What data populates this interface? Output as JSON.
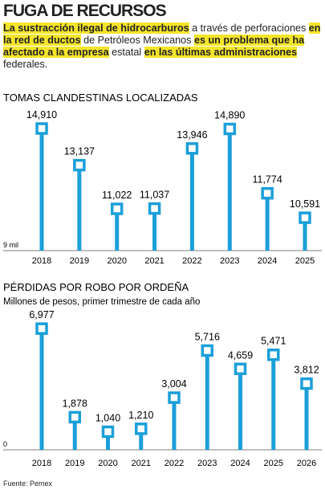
{
  "header": {
    "title": "FUGA DE RECURSOS",
    "intro": [
      {
        "text": "La sustracción ilegal de hidrocarburos",
        "highlight": true
      },
      {
        "text": " a través de perforaciones ",
        "highlight": false
      },
      {
        "text": "en la red de ductos",
        "highlight": true
      },
      {
        "text": " de Petróleos Mexicanos ",
        "highlight": false
      },
      {
        "text": "es un problema que ha afectado a la empresa",
        "highlight": true
      },
      {
        "text": " estatal ",
        "highlight": false
      },
      {
        "text": "en las últimas administraciones",
        "highlight": true
      },
      {
        "text": " federales.",
        "highlight": false
      }
    ]
  },
  "chart_data": [
    {
      "type": "lollipop",
      "title": "TOMAS CLANDESTINAS LOCALIZADAS",
      "categories": [
        "2018",
        "2019",
        "2020",
        "2021",
        "2022",
        "2023",
        "2024",
        "2025"
      ],
      "values": [
        14910,
        13137,
        11022,
        11037,
        13946,
        14890,
        11774,
        10591
      ],
      "value_labels": [
        "14,910",
        "13,137",
        "11,022",
        "11,037",
        "13,946",
        "14,890",
        "11,774",
        "10,591"
      ],
      "color": "#1b9fd9",
      "ylim": [
        9000,
        15300
      ],
      "yticks": [
        {
          "value": 9000,
          "label": "9 mil"
        }
      ]
    },
    {
      "type": "lollipop",
      "title": "PÉRDIDAS POR ROBO POR ORDEÑA",
      "subtitle": "Millones de pesos, primer trimestre de cada año",
      "categories": [
        "2018",
        "2019",
        "2020",
        "2021",
        "2022",
        "2023",
        "2024",
        "2025",
        "2026"
      ],
      "values": [
        6977,
        1878,
        1040,
        1210,
        3004,
        5716,
        4659,
        5471,
        3812
      ],
      "value_labels": [
        "6,977",
        "1,878",
        "1,040",
        "1,210",
        "3,004",
        "5,716",
        "4,659",
        "5,471",
        "3,812"
      ],
      "color": "#1b9fd9",
      "ylim": [
        0,
        7400
      ],
      "yticks": [
        0
      ]
    }
  ],
  "source": "Fuente: Pemex"
}
